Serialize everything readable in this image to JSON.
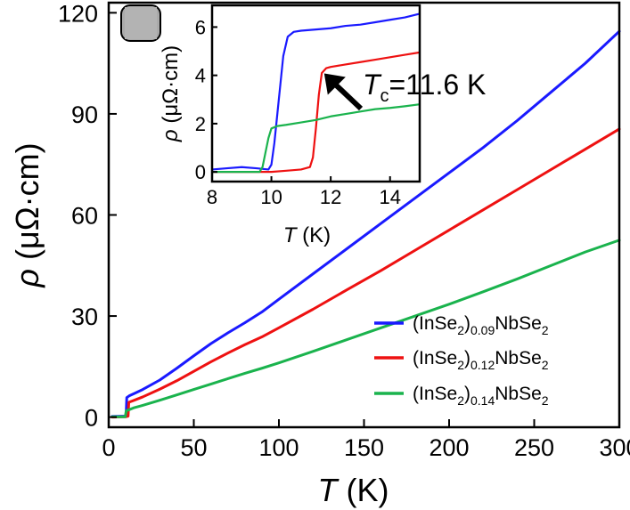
{
  "chart_data": [
    {
      "type": "line",
      "panel_label": "",
      "xlabel_symbol": "T",
      "xlabel_unit": " (K)",
      "ylabel_symbol": "ρ",
      "ylabel_unit": " (μΩ·cm)",
      "xlim": [
        0,
        300
      ],
      "ylim": [
        -3,
        123
      ],
      "xticks": [
        0,
        50,
        100,
        150,
        200,
        250,
        300
      ],
      "yticks": [
        0,
        30,
        60,
        90,
        120
      ],
      "xtick_labels": [
        "0",
        "50",
        "100",
        "150",
        "200",
        "250",
        "300"
      ],
      "ytick_labels": [
        "0",
        "30",
        "60",
        "90",
        "120"
      ],
      "legend_position": "bottom-right",
      "series": [
        {
          "name_prefix": "(InSe",
          "name_sub1": "2",
          "name_mid": ")",
          "name_sub2": "0.09",
          "name_suffix": "NbSe",
          "name_sub3": "2",
          "color": "#1a1aff",
          "x": [
            2,
            10.2,
            10.6,
            12,
            15,
            20,
            30,
            40,
            50,
            60,
            70,
            80,
            90,
            100,
            120,
            140,
            160,
            180,
            200,
            220,
            240,
            260,
            280,
            300
          ],
          "y": [
            0.2,
            0.3,
            5.8,
            6.3,
            7.0,
            8.2,
            11.0,
            14.5,
            18.2,
            21.8,
            25.0,
            28.0,
            31.2,
            35.0,
            42.5,
            50.0,
            57.5,
            65.0,
            72.5,
            80.0,
            88.0,
            96.5,
            105.0,
            114.5
          ]
        },
        {
          "name_prefix": "(InSe",
          "name_sub1": "2",
          "name_mid": ")",
          "name_sub2": "0.12",
          "name_suffix": "NbSe",
          "name_sub3": "2",
          "color": "#ee1111",
          "x": [
            2,
            10,
            11.4,
            11.8,
            15,
            20,
            30,
            40,
            50,
            60,
            70,
            80,
            90,
            100,
            120,
            140,
            160,
            180,
            200,
            220,
            240,
            260,
            280,
            300
          ],
          "y": [
            0.0,
            0.1,
            0.3,
            4.4,
            5.0,
            6.0,
            8.3,
            10.8,
            13.6,
            16.4,
            19.0,
            21.5,
            23.8,
            26.5,
            32.0,
            37.8,
            43.5,
            49.5,
            55.5,
            61.5,
            67.5,
            73.5,
            79.5,
            85.5
          ]
        },
        {
          "name_prefix": "(InSe",
          "name_sub1": "2",
          "name_mid": ")",
          "name_sub2": "0.14",
          "name_suffix": "NbSe",
          "name_sub3": "2",
          "color": "#1ab34d",
          "x": [
            2,
            9.7,
            10.3,
            12,
            15,
            20,
            30,
            40,
            50,
            60,
            70,
            80,
            90,
            100,
            120,
            140,
            160,
            180,
            200,
            220,
            240,
            260,
            280,
            300
          ],
          "y": [
            0.1,
            0.1,
            1.9,
            2.2,
            2.8,
            3.5,
            5.0,
            6.6,
            8.2,
            9.8,
            11.4,
            13.0,
            14.5,
            16.1,
            19.5,
            23.0,
            26.5,
            30.0,
            33.5,
            37.2,
            41.0,
            45.0,
            49.0,
            52.5
          ]
        }
      ]
    },
    {
      "type": "line",
      "role": "inset",
      "xlabel_symbol": "T",
      "xlabel_unit": " (K)",
      "ylabel_symbol": "ρ",
      "ylabel_unit": " (μΩ·cm)",
      "xlim": [
        8,
        15
      ],
      "ylim": [
        -0.4,
        6.9
      ],
      "xticks": [
        8,
        10,
        12,
        14
      ],
      "yticks": [
        0,
        2,
        4,
        6
      ],
      "xtick_labels": [
        "8",
        "10",
        "12",
        "14"
      ],
      "ytick_labels": [
        "0",
        "2",
        "4",
        "6"
      ],
      "annotation": {
        "symbol": "T",
        "subscript": "c",
        "text": "=11.6 K",
        "points_to": [
          11.6,
          4.3
        ]
      },
      "series": [
        {
          "color": "#1a1aff",
          "x": [
            8,
            8.5,
            9,
            9.5,
            9.9,
            10.0,
            10.1,
            10.25,
            10.4,
            10.55,
            10.75,
            11,
            11.5,
            12,
            12.5,
            13,
            13.5,
            14,
            14.5,
            15
          ],
          "y": [
            0.1,
            0.15,
            0.2,
            0.15,
            0.1,
            0.3,
            1.2,
            3.0,
            4.8,
            5.6,
            5.8,
            5.85,
            5.9,
            5.95,
            6.05,
            6.1,
            6.2,
            6.3,
            6.4,
            6.55
          ]
        },
        {
          "color": "#ee1111",
          "x": [
            8,
            10,
            10.5,
            11,
            11.3,
            11.4,
            11.5,
            11.6,
            11.7,
            11.85,
            12,
            12.5,
            13,
            13.5,
            14,
            14.5,
            15
          ],
          "y": [
            0.0,
            0.0,
            0.05,
            0.1,
            0.2,
            0.6,
            1.8,
            3.2,
            4.1,
            4.3,
            4.35,
            4.45,
            4.55,
            4.65,
            4.75,
            4.85,
            4.95
          ]
        },
        {
          "color": "#1ab34d",
          "x": [
            8,
            9.6,
            9.7,
            9.8,
            9.9,
            10.0,
            10.2,
            10.5,
            11,
            11.5,
            12,
            12.5,
            13,
            13.5,
            14,
            14.5,
            15
          ],
          "y": [
            0.0,
            0.0,
            0.2,
            0.8,
            1.4,
            1.8,
            1.9,
            1.95,
            2.05,
            2.15,
            2.3,
            2.4,
            2.5,
            2.6,
            2.65,
            2.72,
            2.8
          ]
        }
      ]
    }
  ]
}
